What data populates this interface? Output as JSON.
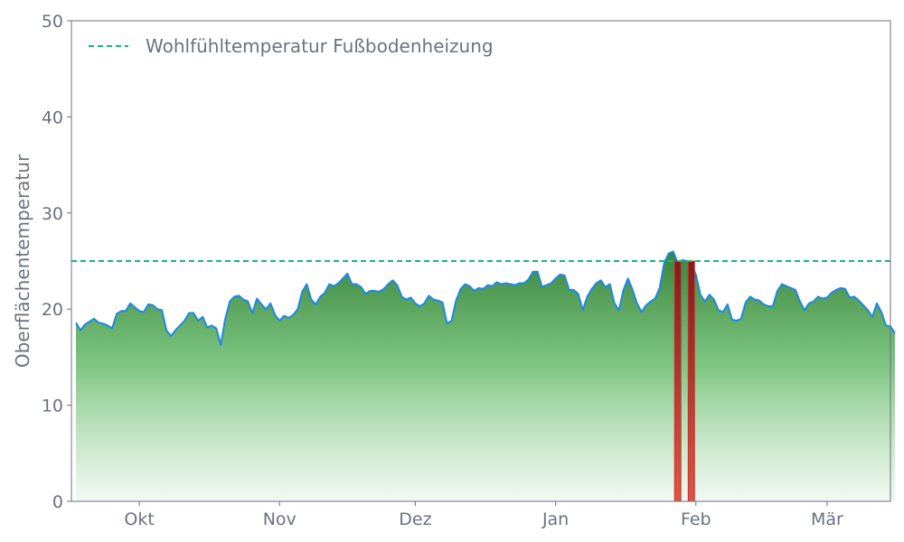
{
  "chart_data": {
    "type": "area",
    "ylabel": "Oberflächentemperatur",
    "ylim": [
      0,
      50
    ],
    "yticks": [
      0,
      10,
      20,
      30,
      40,
      50
    ],
    "xlim": [
      "2023-09-16",
      "2024-03-15"
    ],
    "xticks": [
      {
        "date": "2023-10-01",
        "label": "Okt"
      },
      {
        "date": "2023-11-01",
        "label": "Nov"
      },
      {
        "date": "2023-12-01",
        "label": "Dez"
      },
      {
        "date": "2024-01-01",
        "label": "Jan"
      },
      {
        "date": "2024-02-01",
        "label": "Feb"
      },
      {
        "date": "2024-03-01",
        "label": "Mär"
      }
    ],
    "grid": false,
    "legend_position": "top-left",
    "reference_line": {
      "name": "Wohlfühltemperatur Fußbodenheizung",
      "value": 25,
      "color": "#10b981",
      "style": "dashed"
    },
    "series": [
      {
        "start": "2023-09-17",
        "step_days": 1,
        "color": "#1e88e5",
        "fill_top": "#2e7d32",
        "fill_bottom": "#e8f5e9",
        "values": [
          18.6,
          17.8,
          18.4,
          18.7,
          19.0,
          18.6,
          18.5,
          18.3,
          18.0,
          19.5,
          19.8,
          19.8,
          20.6,
          20.2,
          19.8,
          19.7,
          20.5,
          20.4,
          20.0,
          19.9,
          17.8,
          17.2,
          17.8,
          18.3,
          18.8,
          19.6,
          19.6,
          18.8,
          19.2,
          18.1,
          18.3,
          18.0,
          16.3,
          19.0,
          20.8,
          21.3,
          21.4,
          21.0,
          20.8,
          19.6,
          21.1,
          20.5,
          20.0,
          20.6,
          19.4,
          18.8,
          19.3,
          19.1,
          19.4,
          20.0,
          21.8,
          22.6,
          21.0,
          20.5,
          21.3,
          21.7,
          22.6,
          22.4,
          22.7,
          23.2,
          23.7,
          22.6,
          22.6,
          22.3,
          21.6,
          21.9,
          21.9,
          21.8,
          22.1,
          22.6,
          23.0,
          22.5,
          21.3,
          21.0,
          21.2,
          20.6,
          20.3,
          20.6,
          21.4,
          21.0,
          20.9,
          20.7,
          18.5,
          18.8,
          20.9,
          22.1,
          22.6,
          22.4,
          21.9,
          22.2,
          22.1,
          22.5,
          22.4,
          22.8,
          22.6,
          22.7,
          22.6,
          22.5,
          22.7,
          22.7,
          23.1,
          23.9,
          23.9,
          22.3,
          22.5,
          22.7,
          23.2,
          23.6,
          23.5,
          22.0,
          22.0,
          21.6,
          19.9,
          21.3,
          22.1,
          22.7,
          23.0,
          22.3,
          22.6,
          20.6,
          19.9,
          22.0,
          23.2,
          22.0,
          20.6,
          19.7,
          20.4,
          20.8,
          21.1,
          22.2,
          24.8,
          25.8,
          26.0,
          24.8,
          25.1,
          25.0,
          24.7,
          23.6,
          21.5,
          20.8,
          21.5,
          21.0,
          19.9,
          19.7,
          20.5,
          18.9,
          18.8,
          19.0,
          20.7,
          21.3,
          21.0,
          20.9,
          20.5,
          20.3,
          20.3,
          21.9,
          22.6,
          22.4,
          22.2,
          22.0,
          20.8,
          19.9,
          20.6,
          20.8,
          21.3,
          21.1,
          21.2,
          21.7,
          22.0,
          22.2,
          22.1,
          21.2,
          21.3,
          20.9,
          20.4,
          19.9,
          19.2,
          20.6,
          19.7,
          18.3,
          18.2,
          17.5
        ]
      }
    ],
    "highlights": [
      {
        "date": "2024-01-28",
        "value": 25.0,
        "color": "#c0392b"
      },
      {
        "date": "2024-01-31",
        "value": 25.0,
        "color": "#c0392b"
      }
    ]
  }
}
